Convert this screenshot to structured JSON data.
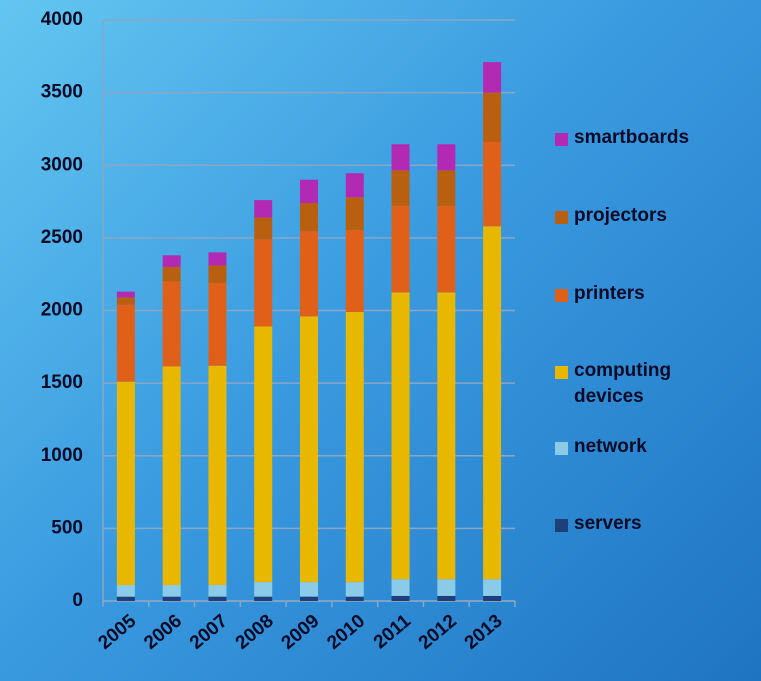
{
  "chart_data": {
    "type": "bar",
    "stacked": true,
    "categories": [
      "2005",
      "2006",
      "2007",
      "2008",
      "2009",
      "2010",
      "2011",
      "2012",
      "2013"
    ],
    "series": [
      {
        "name": "servers",
        "color": "#1f3f7a",
        "values": [
          30,
          30,
          30,
          30,
          30,
          30,
          35,
          35,
          35
        ]
      },
      {
        "name": "network",
        "color": "#8ccbe8",
        "values": [
          80,
          80,
          80,
          100,
          100,
          100,
          115,
          115,
          115
        ]
      },
      {
        "name": "computing devices",
        "color": "#e8b800",
        "values": [
          1400,
          1505,
          1510,
          1760,
          1830,
          1860,
          1975,
          1975,
          2430
        ]
      },
      {
        "name": "printers",
        "color": "#e0601a",
        "values": [
          530,
          585,
          570,
          600,
          585,
          565,
          595,
          595,
          580
        ]
      },
      {
        "name": "projectors",
        "color": "#b8600f",
        "values": [
          50,
          100,
          120,
          150,
          195,
          225,
          245,
          245,
          340
        ]
      },
      {
        "name": "smartboards",
        "color": "#b22ab4",
        "values": [
          40,
          80,
          90,
          120,
          160,
          165,
          180,
          180,
          210
        ]
      }
    ],
    "ylim": [
      0,
      4000
    ],
    "yticks": [
      0,
      500,
      1000,
      1500,
      2000,
      2500,
      3000,
      3500,
      4000
    ],
    "grid": true,
    "legend": "right"
  }
}
